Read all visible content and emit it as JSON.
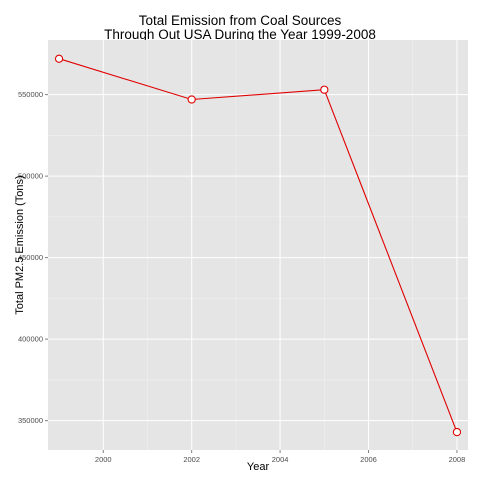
{
  "chart_data": {
    "type": "line",
    "title_lines": [
      "Total Emission from Coal Sources",
      "Through Out USA During the Year 1999-2008"
    ],
    "xlabel": "Year",
    "ylabel": "Total PM2.5 Emission (Tons)",
    "x": [
      1999,
      2002,
      2005,
      2008
    ],
    "series": [
      {
        "values": [
          572000,
          547000,
          553000,
          343000
        ]
      }
    ],
    "xlim": [
      1998.75,
      2008.25
    ],
    "ylim": [
      332000,
      583500
    ],
    "x_ticks": [
      2000,
      2002,
      2004,
      2006,
      2008
    ],
    "x_tick_labels": [
      "2000",
      "2002",
      "2004",
      "2006",
      "2008"
    ],
    "y_ticks": [
      350000,
      400000,
      450000,
      500000,
      550000
    ],
    "y_tick_labels": [
      "350000",
      "400000",
      "450000",
      "500000",
      "550000"
    ],
    "grid": true,
    "colors": {
      "panel": "#e5e5e5",
      "grid_major": "#ffffff",
      "grid_minor": "#f2f2f2",
      "line": "#e00000",
      "marker_fill": "#ffffff"
    }
  }
}
